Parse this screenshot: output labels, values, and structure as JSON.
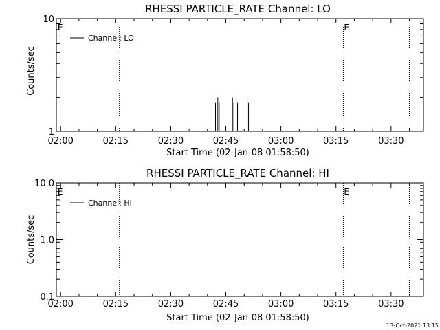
{
  "chart_data": [
    {
      "type": "line",
      "title": "RHESSI PARTICLE_RATE Channel: LO",
      "xlabel": "Start Time (02-Jan-08 01:58:50)",
      "ylabel": "Counts/sec",
      "x_tick_labels": [
        "02:00",
        "02:15",
        "02:30",
        "02:45",
        "03:00",
        "03:15",
        "03:30"
      ],
      "y_scale": "log",
      "ylim": [
        1,
        10
      ],
      "y_tick_labels": [
        {
          "value": 1,
          "label": "1"
        },
        {
          "value": 10,
          "label": "10"
        }
      ],
      "legend": {
        "label": "Channel: LO",
        "placement": "top-left"
      },
      "event_markers": [
        {
          "time": "01:59",
          "label": "E",
          "dotted_line": false
        },
        {
          "time": "02:16",
          "label": "",
          "dotted_line": true
        },
        {
          "time": "03:17",
          "label": "E",
          "dotted_line": true
        },
        {
          "time": "03:35",
          "label": "",
          "dotted_line": true
        }
      ],
      "spikes": [
        {
          "time": "02:42",
          "value": 2
        },
        {
          "time": "02:43",
          "value": 2
        },
        {
          "time": "02:47",
          "value": 2
        },
        {
          "time": "02:48",
          "value": 2
        },
        {
          "time": "02:51",
          "value": 2
        }
      ],
      "series": [
        {
          "name": "Channel: LO",
          "color": "#000000"
        }
      ]
    },
    {
      "type": "line",
      "title": "RHESSI PARTICLE_RATE Channel: HI",
      "xlabel": "Start Time (02-Jan-08 01:58:50)",
      "ylabel": "Counts/sec",
      "x_tick_labels": [
        "02:00",
        "02:15",
        "02:30",
        "02:45",
        "03:00",
        "03:15",
        "03:30"
      ],
      "y_scale": "log",
      "ylim": [
        0.1,
        10
      ],
      "y_tick_labels": [
        {
          "value": 0.1,
          "label": "0.1"
        },
        {
          "value": 1,
          "label": "1.0"
        },
        {
          "value": 10,
          "label": "10.0"
        }
      ],
      "legend": {
        "label": "Channel: HI",
        "placement": "top-left"
      },
      "event_markers": [
        {
          "time": "01:59",
          "label": "E",
          "dotted_line": false
        },
        {
          "time": "02:16",
          "label": "",
          "dotted_line": true
        },
        {
          "time": "03:17",
          "label": "E",
          "dotted_line": true
        },
        {
          "time": "03:35",
          "label": "",
          "dotted_line": true
        }
      ],
      "spikes": [],
      "series": [
        {
          "name": "Channel: HI",
          "color": "#000000"
        }
      ]
    }
  ],
  "footer": {
    "timestamp": "13-Oct-2021 13:15"
  }
}
